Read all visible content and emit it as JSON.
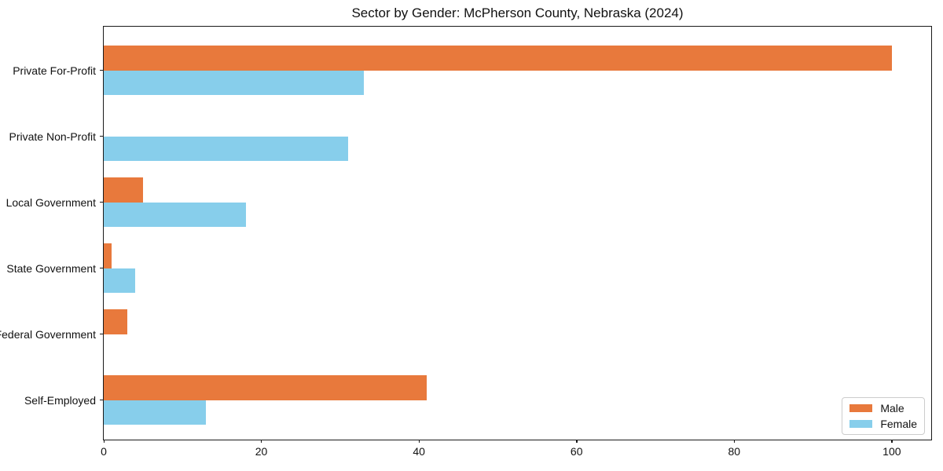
{
  "chart_data": {
    "type": "bar",
    "orientation": "horizontal",
    "title": "Sector by Gender: McPherson County, Nebraska (2024)",
    "categories": [
      "Private For-Profit",
      "Private Non-Profit",
      "Local Government",
      "State Government",
      "Federal Government",
      "Self-Employed"
    ],
    "series": [
      {
        "name": "Male",
        "color": "#e8793c",
        "values": [
          100,
          0,
          5,
          1,
          3,
          41
        ]
      },
      {
        "name": "Female",
        "color": "#87ceeb",
        "values": [
          33,
          31,
          18,
          4,
          0,
          13
        ]
      }
    ],
    "xlabel": "",
    "ylabel": "",
    "xlim": [
      0,
      105
    ],
    "x_ticks": [
      0,
      20,
      40,
      60,
      80,
      100
    ],
    "grid": false,
    "legend_position": "lower right",
    "colors": {
      "male": "#e8793c",
      "female": "#87ceeb",
      "axis": "#1a1a1a",
      "background": "#ffffff"
    }
  }
}
